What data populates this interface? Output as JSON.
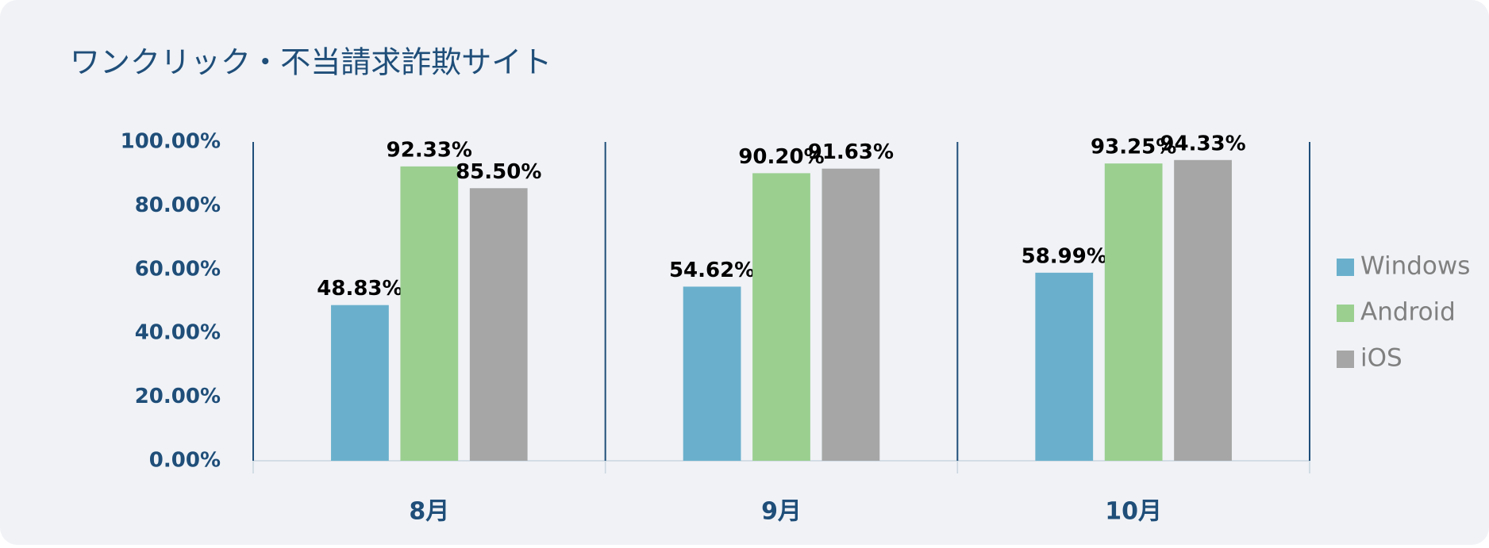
{
  "chart_data": {
    "type": "bar",
    "title": "ワンクリック・不当請求詐欺サイト",
    "categories": [
      "8月",
      "9月",
      "10月"
    ],
    "series": [
      {
        "name": "Windows",
        "color": "#6ab0cc",
        "values": [
          48.83,
          54.62,
          58.99
        ],
        "value_labels": [
          "48.83%",
          "54.62%",
          "58.99%"
        ]
      },
      {
        "name": "Android",
        "color": "#9acf90",
        "values": [
          92.33,
          90.2,
          93.25
        ],
        "value_labels": [
          "92.33%",
          "90.20%",
          "93.25%"
        ]
      },
      {
        "name": "iOS",
        "color": "#a6a6a6",
        "values": [
          85.5,
          91.63,
          94.33
        ],
        "value_labels": [
          "85.50%",
          "91.63%",
          "94.33%"
        ]
      }
    ],
    "ylim": [
      0,
      100
    ],
    "yticks": [
      {
        "value": 0,
        "label": "0.00%"
      },
      {
        "value": 20,
        "label": "20.00%"
      },
      {
        "value": 40,
        "label": "40.00%"
      },
      {
        "value": 60,
        "label": "60.00%"
      },
      {
        "value": 80,
        "label": "80.00%"
      },
      {
        "value": 100,
        "label": "100.00%"
      }
    ],
    "legend": "right"
  }
}
